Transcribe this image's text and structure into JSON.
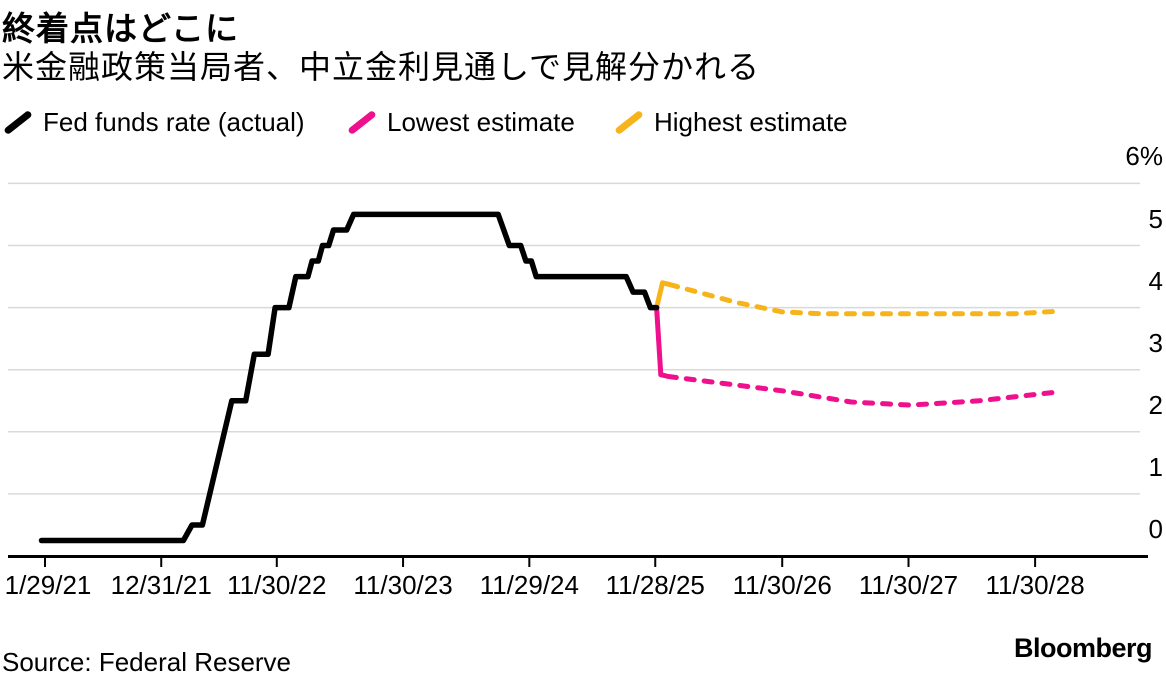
{
  "title": "終着点はどこに",
  "subtitle": "米金融政策当局者、中立金利見通しで見解分かれる",
  "legend": {
    "items": [
      {
        "label": "Fed funds rate (actual)",
        "color": "#000000"
      },
      {
        "label": "Lowest estimate",
        "color": "#ee108c"
      },
      {
        "label": "Highest estimate",
        "color": "#f7b41a"
      }
    ]
  },
  "footer": {
    "source": "Source: Federal Reserve",
    "brand": "Bloomberg"
  },
  "chart_data": {
    "type": "line",
    "title": "終着点はどこに",
    "subtitle": "米金融政策当局者、中立金利見通しで見解分かれる",
    "ylabel": "%",
    "ylim": [
      0,
      6
    ],
    "grid": true,
    "legend_position": "top",
    "colors": {
      "actual": "#000000",
      "lowest": "#ee108c",
      "highest": "#f7b41a",
      "gridline": "#d9d9d9",
      "axis": "#000000"
    },
    "y_ticks": [
      {
        "value": 6,
        "label": "6%"
      },
      {
        "value": 5,
        "label": "5"
      },
      {
        "value": 4,
        "label": "4"
      },
      {
        "value": 3,
        "label": "3"
      },
      {
        "value": 2,
        "label": "2"
      },
      {
        "value": 1,
        "label": "1"
      },
      {
        "value": 0,
        "label": "0"
      }
    ],
    "x_unit": "days since 1/29/21",
    "x_ticks": [
      {
        "label": "1/29/21",
        "days": 0
      },
      {
        "label": "12/31/21",
        "days": 336
      },
      {
        "label": "11/30/22",
        "days": 670
      },
      {
        "label": "11/30/23",
        "days": 1035
      },
      {
        "label": "11/29/24",
        "days": 1400
      },
      {
        "label": "11/28/25",
        "days": 1764
      },
      {
        "label": "11/30/26",
        "days": 2131
      },
      {
        "label": "11/30/27",
        "days": 2496
      },
      {
        "label": "11/30/28",
        "days": 2862
      }
    ],
    "series": [
      {
        "name": "Highest estimate (dashed projection)",
        "color": "#f7b41a",
        "dash": true,
        "width": 5,
        "points": [
          [
            1806,
            4.37
          ],
          [
            2000,
            4.08
          ],
          [
            2131,
            3.93
          ],
          [
            2250,
            3.9
          ],
          [
            2800,
            3.9
          ],
          [
            2925,
            3.94
          ]
        ]
      },
      {
        "name": "Lowest estimate (dashed projection)",
        "color": "#ee108c",
        "dash": true,
        "width": 5,
        "points": [
          [
            1802,
            2.89
          ],
          [
            2131,
            2.66
          ],
          [
            2330,
            2.48
          ],
          [
            2500,
            2.43
          ],
          [
            2700,
            2.5
          ],
          [
            2925,
            2.64
          ]
        ]
      },
      {
        "name": "Highest estimate (solid connector)",
        "color": "#f7b41a",
        "dash": false,
        "width": 5,
        "points": [
          [
            1768,
            4.0
          ],
          [
            1785,
            4.4
          ],
          [
            1806,
            4.37
          ]
        ]
      },
      {
        "name": "Lowest estimate (solid connector)",
        "color": "#ee108c",
        "dash": false,
        "width": 5,
        "points": [
          [
            1768,
            4.0
          ],
          [
            1780,
            2.92
          ],
          [
            1802,
            2.89
          ]
        ]
      },
      {
        "name": "Fed funds rate (actual)",
        "color": "#000000",
        "dash": false,
        "width": 5.5,
        "points": [
          [
            -10,
            0.25
          ],
          [
            400,
            0.25
          ],
          [
            425,
            0.5
          ],
          [
            455,
            0.5
          ],
          [
            540,
            2.5
          ],
          [
            580,
            2.5
          ],
          [
            605,
            3.25
          ],
          [
            645,
            3.25
          ],
          [
            665,
            4.0
          ],
          [
            705,
            4.0
          ],
          [
            725,
            4.5
          ],
          [
            760,
            4.5
          ],
          [
            772,
            4.75
          ],
          [
            790,
            4.75
          ],
          [
            802,
            5.0
          ],
          [
            820,
            5.0
          ],
          [
            834,
            5.25
          ],
          [
            872,
            5.25
          ],
          [
            892,
            5.5
          ],
          [
            1310,
            5.5
          ],
          [
            1342,
            5.0
          ],
          [
            1375,
            5.0
          ],
          [
            1390,
            4.75
          ],
          [
            1406,
            4.75
          ],
          [
            1420,
            4.5
          ],
          [
            1680,
            4.5
          ],
          [
            1700,
            4.25
          ],
          [
            1733,
            4.25
          ],
          [
            1750,
            4.0
          ],
          [
            1768,
            4.0
          ]
        ]
      }
    ]
  }
}
